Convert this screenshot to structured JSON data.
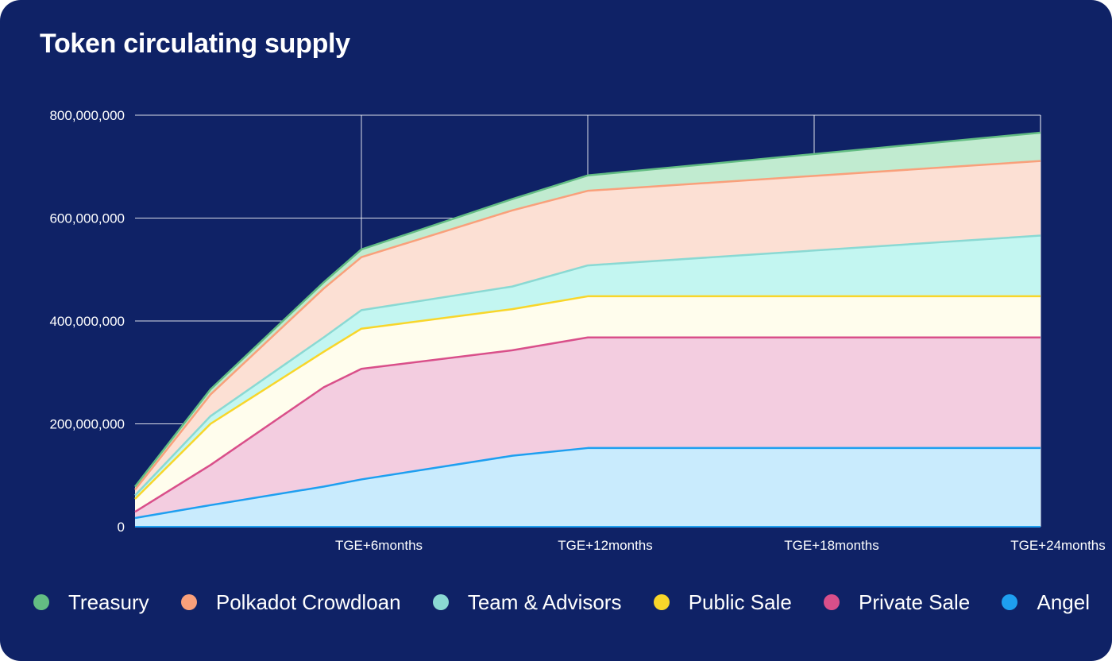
{
  "chart_data": {
    "type": "area",
    "stacked": true,
    "title": "Token circulating supply",
    "xlabel": "",
    "ylabel": "",
    "x_months": [
      0,
      2,
      5,
      6,
      10,
      12,
      24
    ],
    "x_ticks": [
      {
        "month": 6,
        "label": "TGE+6months"
      },
      {
        "month": 12,
        "label": "TGE+12months"
      },
      {
        "month": 18,
        "label": "TGE+18months"
      },
      {
        "month": 24,
        "label": "TGE+24months"
      }
    ],
    "y_ticks": [
      {
        "value": 0,
        "label": "0"
      },
      {
        "value": 200000000,
        "label": "200,000,000"
      },
      {
        "value": 400000000,
        "label": "400,000,000"
      },
      {
        "value": 600000000,
        "label": "600,000,000"
      },
      {
        "value": 800000000,
        "label": "800,000,000"
      }
    ],
    "ylim": [
      0,
      800000000
    ],
    "xlim": [
      0,
      24
    ],
    "grid": true,
    "legend_position": "bottom",
    "series": [
      {
        "name": "Angel",
        "color": "#1e9ff0",
        "fill": "#c9ebfd",
        "values": [
          17000000,
          42000000,
          78000000,
          92000000,
          138000000,
          153000000,
          153000000
        ]
      },
      {
        "name": "Private Sale",
        "color": "#d94f8a",
        "fill": "#f3cde0",
        "values": [
          12000000,
          78000000,
          193000000,
          215000000,
          205000000,
          215000000,
          215000000
        ]
      },
      {
        "name": "Public Sale",
        "color": "#f8d62a",
        "fill": "#fffded",
        "values": [
          25000000,
          80000000,
          69000000,
          78000000,
          80000000,
          80000000,
          80000000
        ]
      },
      {
        "name": "Team & Advisors",
        "color": "#8ad9d3",
        "fill": "#c3f6f1",
        "values": [
          7000000,
          15000000,
          28000000,
          36000000,
          44000000,
          60000000,
          118000000
        ]
      },
      {
        "name": "Polkadot Crowdloan",
        "color": "#f9a07b",
        "fill": "#fce0d4",
        "values": [
          11000000,
          42000000,
          95000000,
          103000000,
          148000000,
          145000000,
          145000000
        ]
      },
      {
        "name": "Treasury",
        "color": "#63bd83",
        "fill": "#c1ebd0",
        "values": [
          6000000,
          10000000,
          12000000,
          15000000,
          22000000,
          30000000,
          55000000
        ]
      }
    ],
    "legend_order": [
      "Treasury",
      "Polkadot Crowdloan",
      "Team & Advisors",
      "Public Sale",
      "Private Sale",
      "Angel"
    ]
  },
  "colors": {
    "background": "#0f2266",
    "grid": "#ffffff",
    "text": "#ffffff"
  }
}
